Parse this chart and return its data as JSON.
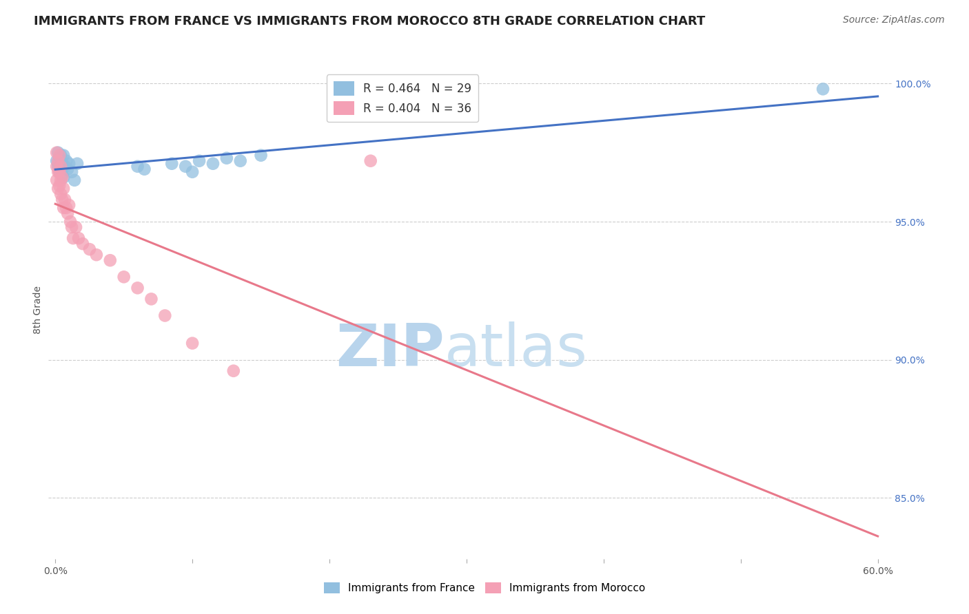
{
  "title": "IMMIGRANTS FROM FRANCE VS IMMIGRANTS FROM MOROCCO 8TH GRADE CORRELATION CHART",
  "source": "Source: ZipAtlas.com",
  "ylabel": "8th Grade",
  "xlim": [
    -0.005,
    0.61
  ],
  "ylim": [
    0.828,
    1.008
  ],
  "xticks": [
    0.0,
    0.1,
    0.2,
    0.3,
    0.4,
    0.5,
    0.6
  ],
  "xticklabels": [
    "0.0%",
    "",
    "",
    "",
    "",
    "",
    "60.0%"
  ],
  "yticks": [
    0.85,
    0.9,
    0.95,
    1.0
  ],
  "yticklabels": [
    "85.0%",
    "90.0%",
    "95.0%",
    "100.0%"
  ],
  "france_R": 0.464,
  "france_N": 29,
  "morocco_R": 0.404,
  "morocco_N": 36,
  "france_color": "#92bfdf",
  "morocco_color": "#f4a0b5",
  "france_line_color": "#4472C4",
  "morocco_line_color": "#E8788A",
  "background_color": "#ffffff",
  "grid_color": "#cccccc",
  "france_x": [
    0.001,
    0.002,
    0.002,
    0.003,
    0.003,
    0.004,
    0.004,
    0.005,
    0.005,
    0.006,
    0.006,
    0.007,
    0.008,
    0.009,
    0.01,
    0.012,
    0.014,
    0.016,
    0.06,
    0.065,
    0.085,
    0.095,
    0.1,
    0.105,
    0.115,
    0.125,
    0.135,
    0.15,
    0.56
  ],
  "france_y": [
    0.972,
    0.975,
    0.97,
    0.973,
    0.968,
    0.974,
    0.969,
    0.971,
    0.967,
    0.974,
    0.966,
    0.97,
    0.972,
    0.969,
    0.971,
    0.968,
    0.965,
    0.971,
    0.97,
    0.969,
    0.971,
    0.97,
    0.968,
    0.972,
    0.971,
    0.973,
    0.972,
    0.974,
    0.998
  ],
  "morocco_x": [
    0.001,
    0.001,
    0.001,
    0.002,
    0.002,
    0.002,
    0.003,
    0.003,
    0.003,
    0.004,
    0.004,
    0.004,
    0.005,
    0.005,
    0.006,
    0.006,
    0.007,
    0.008,
    0.009,
    0.01,
    0.011,
    0.012,
    0.013,
    0.015,
    0.017,
    0.02,
    0.025,
    0.03,
    0.04,
    0.05,
    0.06,
    0.07,
    0.08,
    0.1,
    0.13,
    0.23
  ],
  "morocco_y": [
    0.975,
    0.97,
    0.965,
    0.972,
    0.968,
    0.962,
    0.974,
    0.968,
    0.963,
    0.97,
    0.965,
    0.96,
    0.966,
    0.958,
    0.962,
    0.955,
    0.958,
    0.955,
    0.953,
    0.956,
    0.95,
    0.948,
    0.944,
    0.948,
    0.944,
    0.942,
    0.94,
    0.938,
    0.936,
    0.93,
    0.926,
    0.922,
    0.916,
    0.906,
    0.896,
    0.972
  ],
  "watermark_zip": "ZIP",
  "watermark_atlas": "atlas",
  "watermark_color": "#d6e9f8",
  "title_fontsize": 13,
  "label_fontsize": 10,
  "tick_fontsize": 10,
  "legend_fontsize": 12
}
